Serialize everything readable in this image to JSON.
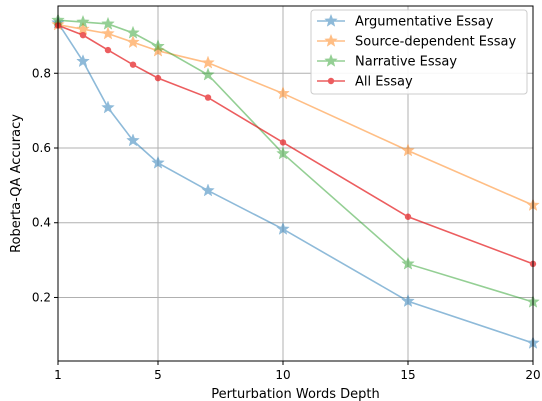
{
  "chart_data": {
    "type": "line",
    "title": "",
    "xlabel": "Perturbation Words Depth",
    "ylabel": "Roberta-QA Accuracy",
    "xlim": [
      1,
      20
    ],
    "ylim": [
      0.03,
      0.98
    ],
    "xticks": [
      1,
      5,
      10,
      15,
      20
    ],
    "yticks": [
      0.2,
      0.4,
      0.6,
      0.8
    ],
    "xtick_labels": [
      "1",
      "5",
      "10",
      "15",
      "20"
    ],
    "ytick_labels": [
      "0.2",
      "0.4",
      "0.6",
      "0.8"
    ],
    "grid": true,
    "legend_position": "top-right",
    "series": [
      {
        "name": "Argumentative Essay",
        "color": "#1f77b4",
        "marker": "star",
        "alpha": 0.5,
        "x": [
          1,
          2,
          3,
          4,
          5,
          7,
          10,
          15,
          20
        ],
        "y": [
          0.935,
          0.832,
          0.708,
          0.62,
          0.56,
          0.486,
          0.383,
          0.19,
          0.078
        ]
      },
      {
        "name": "Source-dependent Essay",
        "color": "#ff7f0e",
        "marker": "star",
        "alpha": 0.5,
        "x": [
          1,
          2,
          3,
          4,
          5,
          7,
          10,
          15,
          20
        ],
        "y": [
          0.93,
          0.918,
          0.906,
          0.883,
          0.86,
          0.828,
          0.746,
          0.593,
          0.447
        ]
      },
      {
        "name": "Narrative Essay",
        "color": "#2ca02c",
        "marker": "star",
        "alpha": 0.5,
        "x": [
          1,
          2,
          3,
          4,
          5,
          7,
          10,
          15,
          20
        ],
        "y": [
          0.942,
          0.937,
          0.932,
          0.908,
          0.872,
          0.796,
          0.585,
          0.29,
          0.188
        ]
      },
      {
        "name": "All Essay",
        "color": "#e41a1c",
        "marker": "circle",
        "alpha": 0.7,
        "x": [
          1,
          2,
          3,
          4,
          5,
          7,
          10,
          15,
          20
        ],
        "y": [
          0.928,
          0.902,
          0.862,
          0.823,
          0.787,
          0.735,
          0.615,
          0.416,
          0.29
        ]
      }
    ]
  }
}
